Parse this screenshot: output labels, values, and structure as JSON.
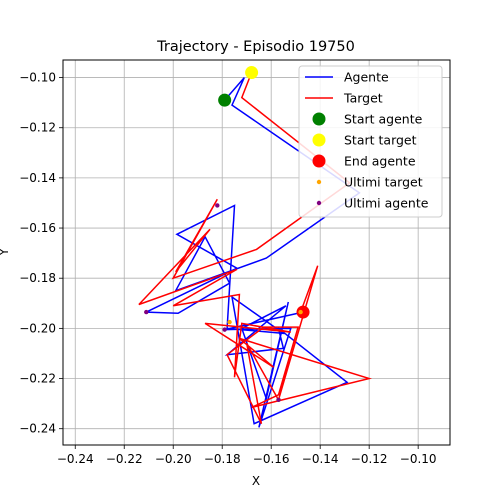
{
  "chart_data": {
    "type": "line",
    "title": "Trajectory - Episodio 19750",
    "xlabel": "X",
    "ylabel": "Y",
    "xlim": [
      -0.245,
      -0.087
    ],
    "ylim": [
      -0.2465,
      -0.093
    ],
    "xticks": [
      -0.24,
      -0.22,
      -0.2,
      -0.18,
      -0.16,
      -0.14,
      -0.12,
      -0.1
    ],
    "yticks": [
      -0.24,
      -0.22,
      -0.2,
      -0.18,
      -0.16,
      -0.14,
      -0.12,
      -0.1
    ],
    "grid": true,
    "legend_position": "top-right",
    "colors": {
      "agente": "#0000ff",
      "target": "#ff0000",
      "start_agente": "#008000",
      "start_target": "#ffff00",
      "end_agente": "#ff0000",
      "ultimi_target": "#ffa500",
      "ultimi_agente": "#800080"
    },
    "legend": [
      {
        "key": "agente",
        "label": "Agente",
        "kind": "line"
      },
      {
        "key": "target",
        "label": "Target",
        "kind": "line"
      },
      {
        "key": "start_agente",
        "label": "Start agente",
        "kind": "bigdot"
      },
      {
        "key": "start_target",
        "label": "Start target",
        "kind": "bigdot"
      },
      {
        "key": "end_agente",
        "label": "End agente",
        "kind": "bigdot"
      },
      {
        "key": "ultimi_target",
        "label": "Ultimi target",
        "kind": "smalldot"
      },
      {
        "key": "ultimi_agente",
        "label": "Ultimi agente",
        "kind": "smalldot"
      }
    ],
    "series": [
      {
        "name": "Agente",
        "key": "agente",
        "x": [
          -0.179,
          -0.171,
          -0.176,
          -0.124,
          -0.162,
          -0.199,
          -0.187,
          -0.177,
          -0.198,
          -0.211,
          -0.174,
          -0.1985,
          -0.175,
          -0.178,
          -0.155,
          -0.176,
          -0.167,
          -0.129,
          -0.157,
          -0.155,
          -0.178,
          -0.154,
          -0.172,
          -0.162,
          -0.153,
          -0.165,
          -0.152,
          -0.179,
          -0.147
        ],
        "y": [
          -0.109,
          -0.1,
          -0.111,
          -0.146,
          -0.172,
          -0.185,
          -0.1635,
          -0.182,
          -0.194,
          -0.1935,
          -0.176,
          -0.1625,
          -0.151,
          -0.2,
          -0.202,
          -0.1875,
          -0.238,
          -0.2215,
          -0.2,
          -0.208,
          -0.2105,
          -0.191,
          -0.2,
          -0.228,
          -0.1895,
          -0.2395,
          -0.2,
          -0.2005,
          -0.1935
        ]
      },
      {
        "name": "Target",
        "key": "target",
        "x": [
          -0.168,
          -0.172,
          -0.128,
          -0.166,
          -0.2,
          -0.182,
          -0.199,
          -0.185,
          -0.214,
          -0.174,
          -0.2,
          -0.173,
          -0.175,
          -0.172,
          -0.152,
          -0.187,
          -0.159,
          -0.173,
          -0.12,
          -0.168,
          -0.157,
          -0.149,
          -0.163,
          -0.178,
          -0.164,
          -0.17,
          -0.157,
          -0.141,
          -0.148
        ],
        "y": [
          -0.098,
          -0.108,
          -0.142,
          -0.1685,
          -0.18,
          -0.1485,
          -0.1775,
          -0.1605,
          -0.1905,
          -0.1765,
          -0.191,
          -0.1865,
          -0.2195,
          -0.198,
          -0.2015,
          -0.198,
          -0.2155,
          -0.204,
          -0.22,
          -0.2315,
          -0.2265,
          -0.1995,
          -0.1995,
          -0.2105,
          -0.238,
          -0.206,
          -0.2285,
          -0.175,
          -0.1935
        ]
      }
    ],
    "markers": [
      {
        "key": "start_agente",
        "x": -0.179,
        "y": -0.109,
        "size": "big"
      },
      {
        "key": "start_target",
        "x": -0.168,
        "y": -0.098,
        "size": "big"
      },
      {
        "key": "end_agente",
        "x": -0.147,
        "y": -0.1935,
        "size": "big"
      },
      {
        "key": "ultimi_target",
        "x": -0.177,
        "y": -0.1975,
        "size": "small"
      },
      {
        "key": "ultimi_target",
        "x": -0.157,
        "y": -0.2285,
        "size": "small"
      },
      {
        "key": "ultimi_target",
        "x": -0.148,
        "y": -0.1935,
        "size": "small"
      },
      {
        "key": "ultimi_agente",
        "x": -0.182,
        "y": -0.151,
        "size": "small"
      },
      {
        "key": "ultimi_agente",
        "x": -0.211,
        "y": -0.1935,
        "size": "small"
      },
      {
        "key": "ultimi_agente",
        "x": -0.179,
        "y": -0.2005,
        "size": "small"
      },
      {
        "key": "ultimi_agente",
        "x": -0.157,
        "y": -0.2285,
        "size": "small"
      }
    ]
  }
}
